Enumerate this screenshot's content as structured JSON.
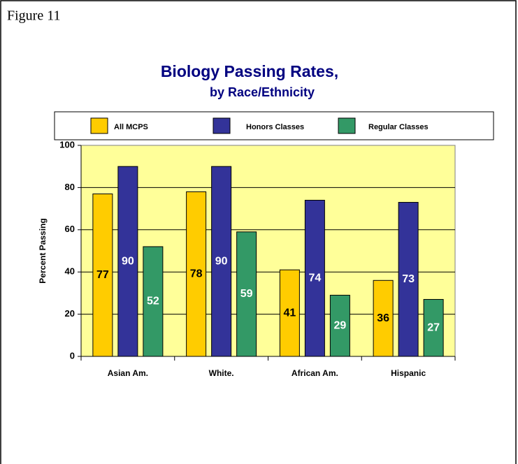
{
  "figure_label": "Figure 11",
  "chart_data": {
    "type": "bar",
    "title": "Biology Passing Rates,",
    "subtitle": "by Race/Ethnicity",
    "y_label": "Percent Passing",
    "categories": [
      "Asian Am.",
      "White.",
      "African Am.",
      "Hispanic"
    ],
    "series": [
      {
        "name": "All MCPS",
        "color": "#ffcc00",
        "values": [
          77,
          78,
          41,
          36
        ]
      },
      {
        "name": "Honors Classes",
        "color": "#333399",
        "values": [
          90,
          90,
          74,
          73
        ]
      },
      {
        "name": "Regular Classes",
        "color": "#339966",
        "values": [
          52,
          59,
          29,
          27
        ]
      }
    ],
    "ylim": [
      0,
      100
    ],
    "yticks": [
      0,
      20,
      40,
      60,
      80,
      100
    ],
    "grid": true,
    "legend": "top",
    "plot_background": "#ffff99"
  }
}
